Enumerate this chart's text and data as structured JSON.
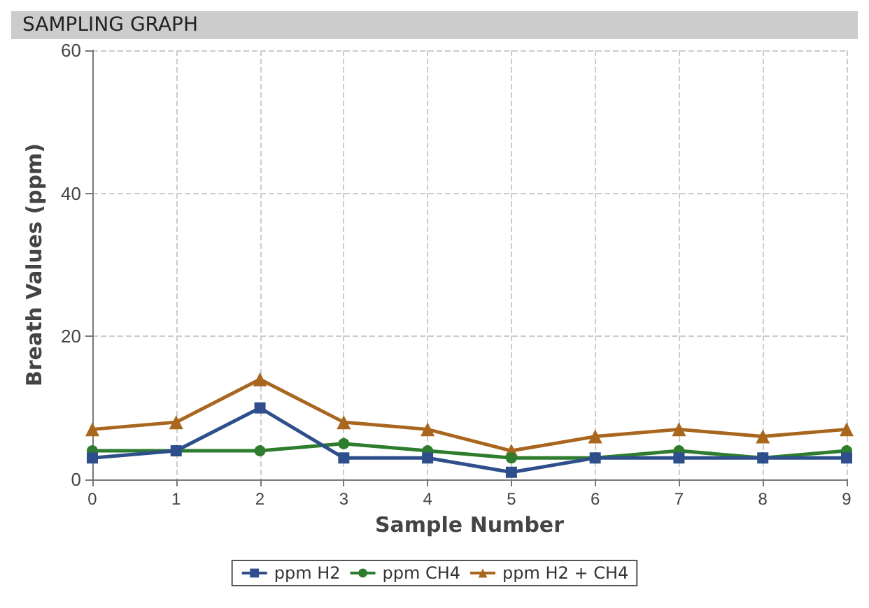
{
  "chart_data": {
    "type": "line",
    "title": "SAMPLING GRAPH",
    "xlabel": "Sample Number",
    "ylabel": "Breath Values (ppm)",
    "x": [
      0,
      1,
      2,
      3,
      4,
      5,
      6,
      7,
      8,
      9
    ],
    "series": [
      {
        "name": "ppm H2",
        "color": "#2e4f8c",
        "marker": "square",
        "values": [
          3,
          4,
          10,
          3,
          3,
          1,
          3,
          3,
          3,
          3
        ]
      },
      {
        "name": "ppm CH4",
        "color": "#2e7d2e",
        "marker": "circle",
        "values": [
          4,
          4,
          4,
          5,
          4,
          3,
          3,
          4,
          3,
          4
        ]
      },
      {
        "name": "ppm H2 + CH4",
        "color": "#a8661e",
        "marker": "triangle",
        "values": [
          7,
          8,
          14,
          8,
          7,
          4,
          6,
          7,
          6,
          7
        ]
      }
    ],
    "xlim": [
      0,
      9
    ],
    "xticks": [
      0,
      1,
      2,
      3,
      4,
      5,
      6,
      7,
      8,
      9
    ],
    "ylim": [
      0,
      60
    ],
    "yticks": [
      0,
      20,
      40,
      60
    ],
    "grid": true,
    "legend": "bottom"
  }
}
